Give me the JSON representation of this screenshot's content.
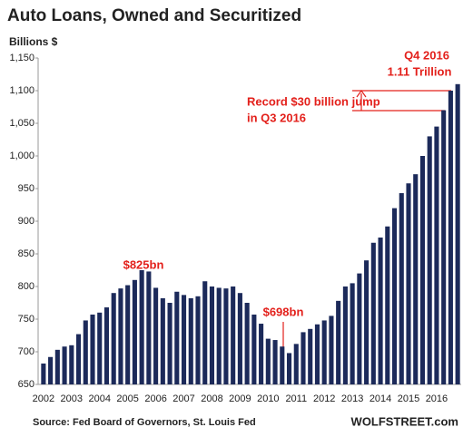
{
  "chart_data": {
    "type": "bar",
    "title": "Auto Loans, Owned and Securitized",
    "y_label": "Billions $",
    "source": "Source: Fed Board of Governors, St. Louis Fed",
    "brand": "WOLFSTREET.com",
    "annotations": [
      "$825bn",
      "$698bn",
      "Record $30 billion jump",
      "in Q3 2016",
      "Q4 2016",
      "1.11 Trillion"
    ],
    "categories": [
      "2002",
      null,
      null,
      null,
      "2003",
      null,
      null,
      null,
      "2004",
      null,
      null,
      null,
      "2005",
      null,
      null,
      null,
      "2006",
      null,
      null,
      null,
      "2007",
      null,
      null,
      null,
      "2008",
      null,
      null,
      null,
      "2009",
      null,
      null,
      null,
      "2010",
      null,
      null,
      null,
      "2011",
      null,
      null,
      null,
      "2012",
      null,
      null,
      null,
      "2013",
      null,
      null,
      null,
      "2014",
      null,
      null,
      null,
      "2015",
      null,
      null,
      null,
      "2016",
      null,
      null,
      null
    ],
    "values": [
      682,
      692,
      703,
      708,
      710,
      727,
      748,
      757,
      760,
      768,
      790,
      797,
      802,
      810,
      825,
      823,
      798,
      782,
      775,
      792,
      787,
      782,
      785,
      808,
      800,
      798,
      797,
      800,
      790,
      775,
      757,
      743,
      720,
      718,
      708,
      698,
      712,
      730,
      735,
      742,
      748,
      755,
      778,
      800,
      805,
      820,
      840,
      867,
      875,
      892,
      920,
      943,
      958,
      972,
      1000,
      1030,
      1045,
      1070,
      1100,
      1110
    ],
    "color": "#1c2a5a",
    "ylim": [
      650,
      1150
    ],
    "yticks": [
      650,
      700,
      750,
      800,
      850,
      900,
      950,
      {
        "value": 1000,
        "label": "1,000"
      },
      {
        "value": 1050,
        "label": "1,050"
      },
      {
        "value": 1100,
        "label": "1,100"
      },
      {
        "value": 1150,
        "label": "1,150"
      }
    ],
    "grid": false
  }
}
